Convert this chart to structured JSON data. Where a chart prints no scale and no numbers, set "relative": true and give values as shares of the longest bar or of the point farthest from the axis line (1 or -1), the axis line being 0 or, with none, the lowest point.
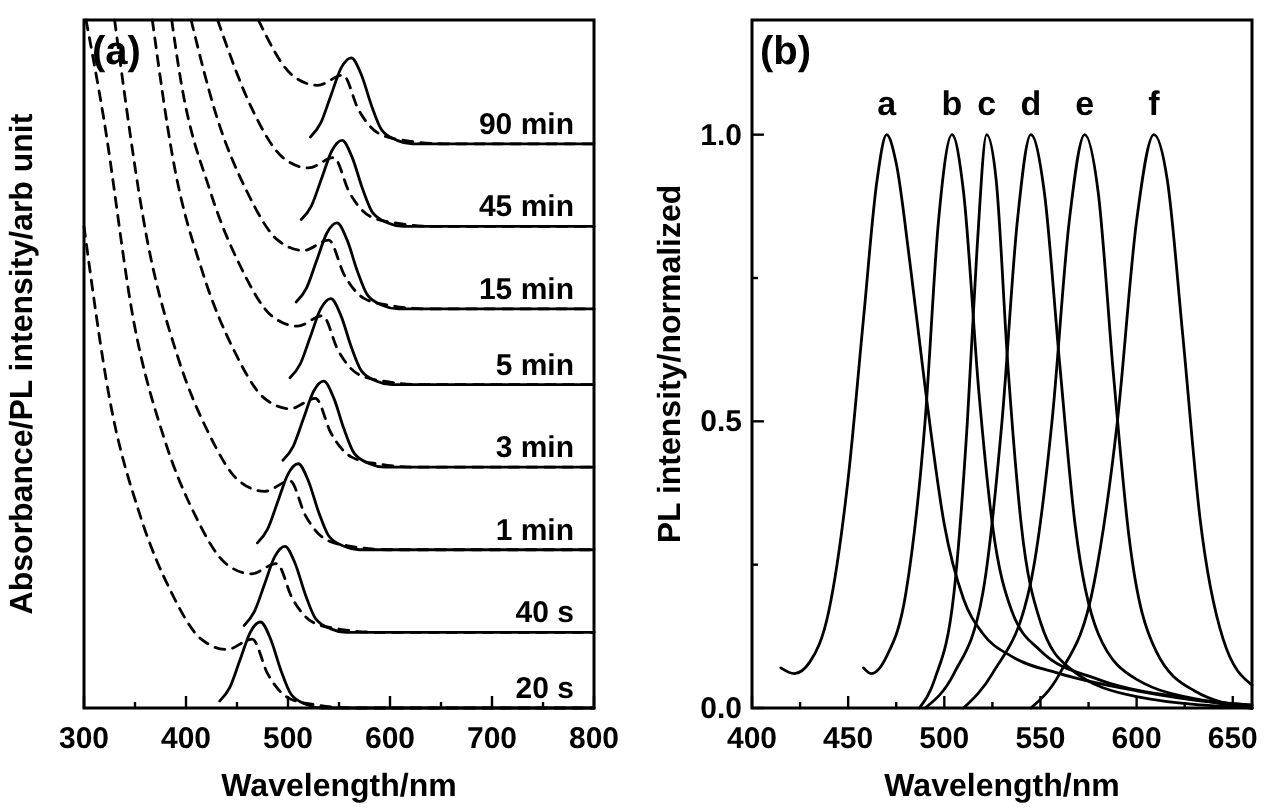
{
  "chart_data": [
    {
      "type": "line",
      "relative": true,
      "xlabel": "Wavelength/nm",
      "ylabel": "Absorbance/PL intensity/arb unit",
      "xlim": [
        300,
        800
      ],
      "xticks": [
        300,
        {
          "value": 350,
          "label": null
        },
        400,
        {
          "value": 450,
          "label": null
        },
        500,
        {
          "value": 550,
          "label": null
        },
        600,
        {
          "value": 650,
          "label": null
        },
        700,
        {
          "value": 750,
          "label": null
        },
        800
      ],
      "annotations": [
        "(a)"
      ],
      "series": [
        {
          "name": "20 s",
          "color": "#000000",
          "line_style": "solid",
          "x": [
            433,
            443,
            453,
            463,
            473,
            483,
            493,
            503,
            518,
            533,
            800
          ],
          "values": [
            0.01,
            0.03,
            0.07,
            0.11,
            0.125,
            0.1,
            0.055,
            0.02,
            0.005,
            0,
            0
          ]
        },
        {
          "color": "#000000",
          "line_style": "dashed",
          "x": [
            300,
            325,
            355,
            385,
            415,
            440,
            465,
            480,
            500,
            525,
            565,
            800
          ],
          "values": [
            0.7,
            0.45,
            0.28,
            0.17,
            0.1,
            0.085,
            0.1,
            0.05,
            0.015,
            0.005,
            0,
            0
          ]
        },
        {
          "name": "40 s",
          "color": "#000000",
          "line_style": "solid",
          "x": [
            457,
            467,
            477,
            487,
            497,
            507,
            517,
            527,
            542,
            557,
            800
          ],
          "values": [
            0.12,
            0.14,
            0.18,
            0.22,
            0.235,
            0.21,
            0.165,
            0.13,
            0.115,
            0.11,
            0.11
          ]
        },
        {
          "color": "#000000",
          "line_style": "dashed",
          "x": [
            302,
            319,
            349,
            379,
            409,
            439,
            464,
            489,
            504,
            524,
            549,
            589,
            800
          ],
          "values": [
            1.0,
            0.86,
            0.56,
            0.39,
            0.28,
            0.21,
            0.195,
            0.21,
            0.16,
            0.125,
            0.115,
            0.11,
            0.11
          ]
        },
        {
          "name": "1 min",
          "color": "#000000",
          "line_style": "solid",
          "x": [
            470,
            480,
            490,
            500,
            510,
            520,
            530,
            540,
            555,
            570,
            800
          ],
          "values": [
            0.24,
            0.26,
            0.3,
            0.34,
            0.355,
            0.33,
            0.285,
            0.25,
            0.235,
            0.23,
            0.23
          ]
        },
        {
          "color": "#000000",
          "line_style": "dashed",
          "x": [
            330,
            362,
            392,
            422,
            452,
            477,
            502,
            517,
            537,
            562,
            602,
            800
          ],
          "values": [
            1.0,
            0.68,
            0.51,
            0.4,
            0.33,
            0.315,
            0.33,
            0.28,
            0.245,
            0.235,
            0.23,
            0.23
          ]
        },
        {
          "name": "3 min",
          "color": "#000000",
          "line_style": "solid",
          "x": [
            495,
            505,
            515,
            525,
            535,
            545,
            555,
            565,
            580,
            595,
            800
          ],
          "values": [
            0.36,
            0.38,
            0.42,
            0.46,
            0.475,
            0.45,
            0.405,
            0.37,
            0.355,
            0.35,
            0.35
          ]
        },
        {
          "color": "#000000",
          "line_style": "dashed",
          "x": [
            367,
            387,
            417,
            447,
            477,
            502,
            527,
            542,
            562,
            587,
            627,
            800
          ],
          "values": [
            1.0,
            0.8,
            0.63,
            0.52,
            0.45,
            0.435,
            0.45,
            0.4,
            0.365,
            0.355,
            0.35,
            0.35
          ]
        },
        {
          "name": "5 min",
          "color": "#000000",
          "line_style": "solid",
          "x": [
            502,
            512,
            522,
            532,
            542,
            552,
            562,
            572,
            587,
            602,
            800
          ],
          "values": [
            0.48,
            0.5,
            0.54,
            0.58,
            0.595,
            0.57,
            0.525,
            0.49,
            0.475,
            0.47,
            0.47
          ]
        },
        {
          "color": "#000000",
          "line_style": "dashed",
          "x": [
            386,
            394,
            424,
            454,
            484,
            509,
            534,
            549,
            569,
            594,
            634,
            800
          ],
          "values": [
            1.0,
            0.92,
            0.75,
            0.64,
            0.57,
            0.555,
            0.57,
            0.52,
            0.485,
            0.475,
            0.47,
            0.47
          ]
        },
        {
          "name": "15 min",
          "color": "#000000",
          "line_style": "solid",
          "x": [
            508,
            518,
            528,
            538,
            548,
            558,
            568,
            578,
            593,
            608,
            800
          ],
          "values": [
            0.59,
            0.61,
            0.65,
            0.69,
            0.705,
            0.68,
            0.635,
            0.6,
            0.585,
            0.58,
            0.58
          ]
        },
        {
          "color": "#000000",
          "line_style": "dashed",
          "x": [
            405,
            430,
            460,
            490,
            515,
            540,
            555,
            575,
            600,
            640,
            800
          ],
          "values": [
            1.0,
            0.86,
            0.75,
            0.68,
            0.665,
            0.68,
            0.63,
            0.595,
            0.585,
            0.58,
            0.58
          ]
        },
        {
          "name": "45 min",
          "color": "#000000",
          "line_style": "solid",
          "x": [
            513,
            523,
            533,
            543,
            553,
            563,
            573,
            583,
            598,
            613,
            800
          ],
          "values": [
            0.71,
            0.73,
            0.77,
            0.81,
            0.825,
            0.8,
            0.755,
            0.72,
            0.705,
            0.7,
            0.7
          ]
        },
        {
          "color": "#000000",
          "line_style": "dashed",
          "x": [
            431,
            465,
            495,
            520,
            545,
            560,
            580,
            605,
            645,
            800
          ],
          "values": [
            1.0,
            0.87,
            0.8,
            0.785,
            0.8,
            0.75,
            0.715,
            0.705,
            0.7,
            0.7
          ]
        },
        {
          "name": "90 min",
          "color": "#000000",
          "line_style": "solid",
          "x": [
            522,
            532,
            542,
            552,
            562,
            572,
            582,
            592,
            607,
            622,
            800
          ],
          "values": [
            0.83,
            0.85,
            0.89,
            0.93,
            0.945,
            0.92,
            0.875,
            0.84,
            0.825,
            0.82,
            0.82
          ]
        },
        {
          "color": "#000000",
          "line_style": "dashed",
          "x": [
            471,
            504,
            529,
            554,
            569,
            589,
            614,
            654,
            800
          ],
          "values": [
            1.0,
            0.92,
            0.905,
            0.92,
            0.87,
            0.835,
            0.825,
            0.82,
            0.82
          ]
        }
      ]
    },
    {
      "type": "line",
      "xlabel": "Wavelength/nm",
      "ylabel": "PL intensity/normalized",
      "xlim": [
        400,
        660
      ],
      "xticks": [
        400,
        {
          "value": 425,
          "label": null
        },
        450,
        {
          "value": 475,
          "label": null
        },
        500,
        {
          "value": 525,
          "label": null
        },
        550,
        {
          "value": 575,
          "label": null
        },
        600,
        {
          "value": 625,
          "label": null
        },
        650
      ],
      "ylim": [
        0,
        1.2
      ],
      "yticks": [
        {
          "value": 0,
          "label": "0.0"
        },
        {
          "value": 0.25,
          "label": null
        },
        {
          "value": 0.5,
          "label": "0.5"
        },
        {
          "value": 0.75,
          "label": null
        },
        {
          "value": 1,
          "label": "1.0"
        }
      ],
      "annotations": [
        "(b)"
      ],
      "series": [
        {
          "name": "a",
          "color": "#000000",
          "x": [
            415,
            422,
            430,
            440,
            450,
            458,
            465,
            470,
            475,
            482,
            490,
            500,
            510,
            520,
            535,
            560,
            600,
            640,
            660
          ],
          "values": [
            0.07,
            0.06,
            0.08,
            0.17,
            0.4,
            0.68,
            0.92,
            1.0,
            0.95,
            0.78,
            0.56,
            0.32,
            0.19,
            0.13,
            0.09,
            0.06,
            0.03,
            0.01,
            0.005
          ]
        },
        {
          "name": "b",
          "color": "#000000",
          "x": [
            458,
            462,
            470,
            480,
            490,
            497,
            504,
            510,
            518,
            525,
            535,
            550,
            580,
            620,
            660
          ],
          "values": [
            0.07,
            0.06,
            0.09,
            0.2,
            0.5,
            0.85,
            1.0,
            0.9,
            0.55,
            0.32,
            0.17,
            0.1,
            0.05,
            0.02,
            0.005
          ]
        },
        {
          "name": "c",
          "color": "#000000",
          "x": [
            487,
            495,
            505,
            512,
            517,
            522,
            527,
            533,
            540,
            550,
            565,
            600,
            660
          ],
          "values": [
            0,
            0.05,
            0.2,
            0.5,
            0.8,
            1.0,
            0.92,
            0.6,
            0.32,
            0.15,
            0.07,
            0.02,
            0
          ]
        },
        {
          "name": "d",
          "color": "#000000",
          "x": [
            490,
            505,
            520,
            530,
            538,
            545,
            552,
            560,
            568,
            580,
            600,
            640,
            660
          ],
          "values": [
            0,
            0.06,
            0.2,
            0.5,
            0.85,
            1.0,
            0.9,
            0.6,
            0.32,
            0.13,
            0.05,
            0.01,
            0
          ]
        },
        {
          "name": "e",
          "color": "#000000",
          "x": [
            510,
            525,
            545,
            556,
            565,
            573,
            580,
            588,
            596,
            610,
            630,
            660
          ],
          "values": [
            0,
            0.06,
            0.22,
            0.5,
            0.85,
            1.0,
            0.9,
            0.58,
            0.3,
            0.1,
            0.03,
            0
          ]
        },
        {
          "name": "f",
          "color": "#000000",
          "x": [
            545,
            560,
            578,
            590,
            600,
            609,
            616,
            624,
            633,
            645,
            660
          ],
          "values": [
            0,
            0.06,
            0.22,
            0.5,
            0.85,
            1.0,
            0.92,
            0.65,
            0.33,
            0.12,
            0.04
          ]
        }
      ]
    }
  ]
}
